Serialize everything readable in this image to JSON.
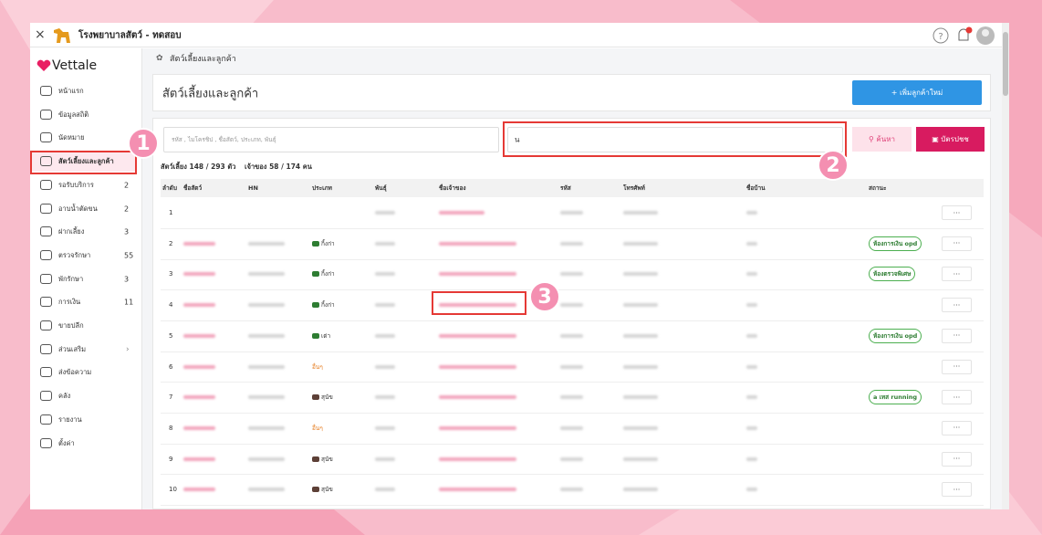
{
  "window": {
    "title": "โรงพยาบาลสัตว์ - ทดสอบ"
  },
  "sidebar": {
    "logo": "Vettale",
    "menu": [
      {
        "label": "หน้าแรก"
      },
      {
        "label": "ข้อมูลสถิติ"
      },
      {
        "label": "นัดหมาย"
      },
      {
        "label": "สัตว์เลี้ยงและลูกค้า",
        "active": true
      },
      {
        "label": "รอรับบริการ",
        "count": 2
      },
      {
        "label": "อาบน้ำตัดขน",
        "count": 2
      },
      {
        "label": "ฝากเลี้ยง",
        "count": 3
      },
      {
        "label": "ตรวจรักษา",
        "count": 55
      },
      {
        "label": "พักรักษา",
        "count": 3
      },
      {
        "label": "การเงิน",
        "count": 11
      },
      {
        "label": "ขายปลีก"
      },
      {
        "label": "ส่วนเสริม",
        "arrow": "›"
      },
      {
        "label": "ส่งข้อความ"
      },
      {
        "label": "คลัง"
      },
      {
        "label": "รายงาน"
      },
      {
        "label": "ตั้งค่า"
      }
    ]
  },
  "breadcrumb": "สัตว์เลี้ยงและลูกค้า",
  "page": {
    "title": "สัตว์เลี้ยงและลูกค้า",
    "add_button": "+ เพิ่มลูกค้าใหม่"
  },
  "search": {
    "placeholder": "รหัส , ไมโครชิป , ชื่อสัตว์, ประเภท, พันธุ์",
    "value": "น",
    "search_button": "ค้นหา",
    "id_card_button": "บัตรปชช"
  },
  "summary": {
    "pets": "สัตว์เลี้ยง 148 / 293 ตัว",
    "owners": "เจ้าของ 58 / 174 คน"
  },
  "table": {
    "columns": [
      "ลำดับ",
      "ชื่อสัตว์",
      "HN",
      "ประเภท",
      "พันธุ์",
      "ชื่อเจ้าของ",
      "รหัส",
      "โทรศัพท์",
      "ชื่อบ้าน",
      "สถานะ"
    ],
    "more": "···",
    "rows": [
      {
        "no": 1
      },
      {
        "no": 2,
        "type": "กิ้งก่า",
        "status": "ห้องการเงิน opd"
      },
      {
        "no": 3,
        "type": "กิ้งก่า",
        "status": "ห้องตรวจพิเศษ"
      },
      {
        "no": 4,
        "type": "กิ้งก่า"
      },
      {
        "no": 5,
        "type": "เต่า",
        "status": "ห้องการเงิน opd"
      },
      {
        "no": 6,
        "type": "อื่นๆ"
      },
      {
        "no": 7,
        "type": "สุนัข",
        "status": "a เทส running"
      },
      {
        "no": 8,
        "type": "อื่นๆ"
      },
      {
        "no": 9,
        "type": "สุนัข"
      },
      {
        "no": 10,
        "type": "สุนัข"
      }
    ]
  },
  "annotations": [
    "1",
    "2",
    "3"
  ]
}
